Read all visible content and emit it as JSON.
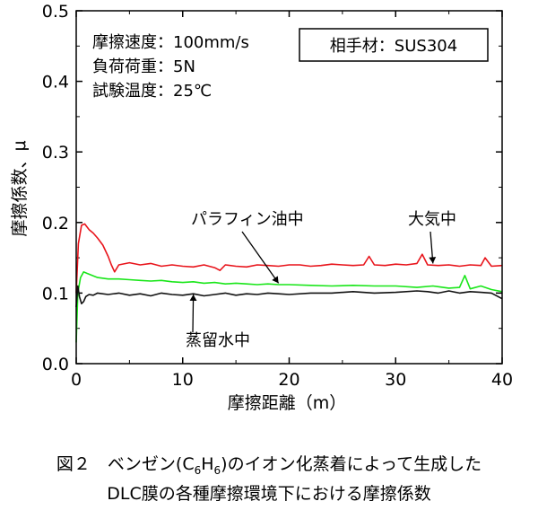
{
  "chart_data": {
    "type": "line",
    "xlabel": "摩擦距離（m）",
    "ylabel": "摩擦係数、μ",
    "xlim": [
      0,
      40
    ],
    "ylim": [
      0,
      0.5
    ],
    "xticks": [
      0,
      10,
      20,
      30,
      40
    ],
    "yticks": [
      0,
      0.1,
      0.2,
      0.3,
      0.4,
      0.5
    ],
    "xtick_labels": [
      "0",
      "10",
      "20",
      "30",
      "40"
    ],
    "ytick_labels": [
      "0.0",
      "0.1",
      "0.2",
      "0.3",
      "0.4",
      "0.5"
    ],
    "grid": false,
    "conditions": [
      "摩擦速度：100mm/s",
      "負荷荷重：5N",
      "試験温度：25℃"
    ],
    "counter_material": "相手材：SUS304",
    "series": [
      {
        "name": "大気中",
        "color": "#e8141b",
        "x": [
          0,
          0.2,
          0.5,
          0.8,
          1.2,
          1.6,
          2.0,
          2.5,
          3.0,
          3.3,
          3.6,
          4.0,
          5,
          6,
          7,
          8,
          9,
          10,
          11,
          12,
          13,
          13.5,
          14,
          15,
          16,
          17,
          18,
          19,
          20,
          21,
          22,
          23,
          24,
          25,
          26,
          27,
          27.5,
          28,
          29,
          30,
          31,
          32,
          32.5,
          33,
          34,
          35,
          36,
          37,
          38,
          38.4,
          39,
          40
        ],
        "y": [
          0.1,
          0.17,
          0.196,
          0.198,
          0.19,
          0.185,
          0.178,
          0.168,
          0.152,
          0.14,
          0.13,
          0.14,
          0.143,
          0.14,
          0.142,
          0.138,
          0.14,
          0.138,
          0.137,
          0.14,
          0.136,
          0.132,
          0.14,
          0.138,
          0.137,
          0.14,
          0.139,
          0.138,
          0.14,
          0.14,
          0.138,
          0.139,
          0.141,
          0.14,
          0.139,
          0.14,
          0.152,
          0.14,
          0.139,
          0.141,
          0.14,
          0.142,
          0.155,
          0.14,
          0.139,
          0.14,
          0.138,
          0.14,
          0.139,
          0.15,
          0.138,
          0.139
        ]
      },
      {
        "name": "パラフィン油中",
        "color": "#19e619",
        "x": [
          0,
          0.15,
          0.4,
          0.7,
          1,
          1.5,
          2,
          3,
          4,
          5,
          6,
          7,
          8,
          9,
          10,
          11,
          12,
          13,
          14,
          15,
          16,
          17,
          18,
          19,
          20,
          22,
          24,
          26,
          28,
          30,
          32,
          33.5,
          34,
          35,
          36,
          36.5,
          37,
          38,
          39,
          40
        ],
        "y": [
          0.03,
          0.1,
          0.122,
          0.13,
          0.128,
          0.125,
          0.122,
          0.12,
          0.12,
          0.119,
          0.118,
          0.117,
          0.118,
          0.116,
          0.115,
          0.116,
          0.114,
          0.115,
          0.113,
          0.114,
          0.113,
          0.112,
          0.113,
          0.112,
          0.112,
          0.111,
          0.11,
          0.111,
          0.11,
          0.11,
          0.108,
          0.11,
          0.109,
          0.107,
          0.108,
          0.125,
          0.106,
          0.11,
          0.105,
          0.102
        ]
      },
      {
        "name": "蒸留水中",
        "color": "#111111",
        "x": [
          0,
          0.15,
          0.3,
          0.5,
          0.7,
          0.9,
          1.2,
          1.6,
          2,
          3,
          4,
          5,
          6,
          7,
          8,
          9,
          10,
          11,
          12,
          13,
          14,
          15,
          16,
          17,
          18,
          19,
          20,
          22,
          24,
          26,
          28,
          30,
          32,
          33,
          34,
          35,
          36,
          37,
          38,
          39,
          40
        ],
        "y": [
          0.08,
          0.11,
          0.095,
          0.085,
          0.088,
          0.095,
          0.098,
          0.097,
          0.1,
          0.098,
          0.1,
          0.097,
          0.099,
          0.096,
          0.1,
          0.098,
          0.097,
          0.099,
          0.096,
          0.098,
          0.1,
          0.097,
          0.099,
          0.098,
          0.1,
          0.099,
          0.098,
          0.1,
          0.1,
          0.102,
          0.1,
          0.101,
          0.103,
          0.102,
          0.1,
          0.103,
          0.1,
          0.102,
          0.101,
          0.1,
          0.092
        ]
      }
    ],
    "annotations": [
      {
        "text": "パラフィン油中",
        "target_x": 19.0,
        "target_y": 0.114
      },
      {
        "text": "大気中",
        "target_x": 33.5,
        "target_y": 0.142
      },
      {
        "text": "蒸留水中",
        "target_x": 11.0,
        "target_y": 0.098
      }
    ]
  },
  "caption": {
    "line1": "図２　ベンゼン(C",
    "sub1": "6",
    "mid": "H",
    "sub2": "6",
    "line1_end": ")のイオン化蒸着によって生成した",
    "line2": "DLC膜の各種摩擦環境下における摩擦係数"
  }
}
